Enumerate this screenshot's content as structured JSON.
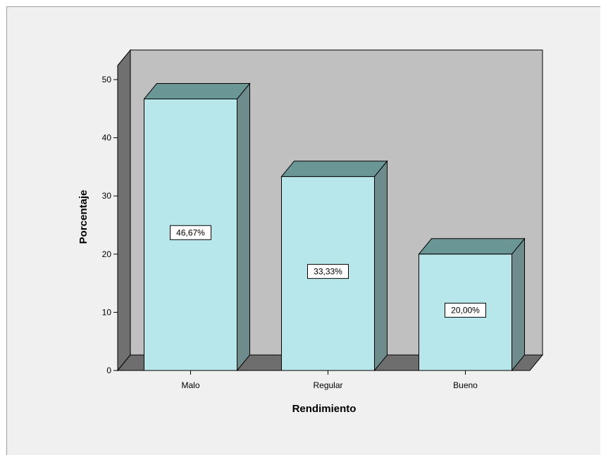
{
  "chart_data": {
    "type": "bar",
    "categories": [
      "Malo",
      "Regular",
      "Bueno"
    ],
    "values": [
      46.67,
      33.33,
      20.0
    ],
    "data_labels": [
      "46,67%",
      "33,33%",
      "20,00%"
    ],
    "xlabel": "Rendimiento",
    "ylabel": "Porcentaje",
    "ylim": [
      0,
      50
    ],
    "yticks": [
      "0",
      "10",
      "20",
      "30",
      "40",
      "50"
    ],
    "grid": false,
    "style": "3d",
    "colors": {
      "background": "#f0f0f0",
      "plot_back": "#c0c0c0",
      "floor": "#6e6e6e",
      "side_wall": "#707070",
      "bar_front": "#b7e7ea",
      "bar_top": "#6a9696",
      "bar_side": "#6e8c8c",
      "outline": "#000000"
    }
  }
}
